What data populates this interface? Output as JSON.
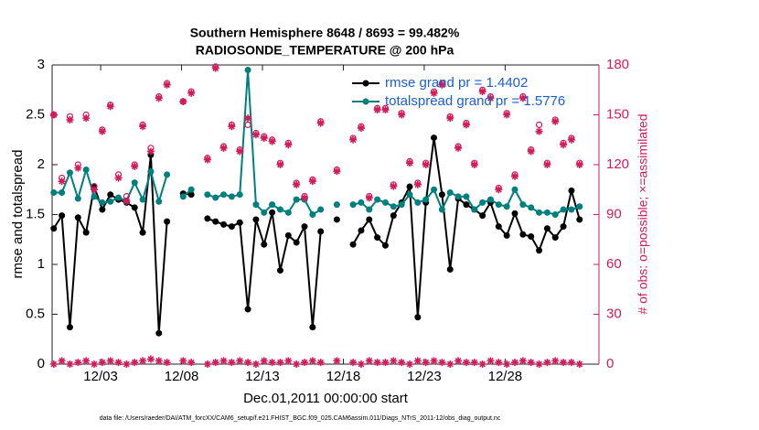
{
  "chart_data": {
    "type": "line",
    "title": "Southern Hemisphere 8648 / 8693 = 99.482%",
    "subtitle": "RADIOSONDE_TEMPERATURE @ 200 hPa",
    "xlabel": "Dec.01,2011 00:00:00 start",
    "ylabel": "rmse and totalspread",
    "y2label": "# of obs: o=possible; ×=assimilated",
    "footnote": "data file: /Users/raeder/DAI/ATM_forcXX/CAM6_setup/f.e21.FHIST_BGC.f09_025.CAM6assim.011/Diags_NTrS_2011-12/obs_diag_output.nc",
    "legend": "northeast",
    "xlim": [
      0,
      33.8
    ],
    "xticks": [
      {
        "value": 3,
        "label": "12/03"
      },
      {
        "value": 8,
        "label": "12/08"
      },
      {
        "value": 13,
        "label": "12/13"
      },
      {
        "value": 18,
        "label": "12/18"
      },
      {
        "value": 23,
        "label": "12/23"
      },
      {
        "value": 28,
        "label": "12/28"
      }
    ],
    "ylim": [
      0,
      3
    ],
    "yticks": [
      0,
      0.5,
      1,
      1.5,
      2,
      2.5,
      3
    ],
    "y2lim": [
      0,
      180
    ],
    "y2ticks": [
      0,
      30,
      60,
      90,
      120,
      150,
      180
    ],
    "y2color": "#d41a5a",
    "x": [
      0.1,
      0.6,
      1.1,
      1.6,
      2.1,
      2.6,
      3.1,
      3.6,
      4.1,
      4.6,
      5.1,
      5.6,
      6.1,
      6.6,
      7.1,
      7.6,
      8.1,
      8.6,
      9.1,
      9.6,
      10.1,
      10.6,
      11.1,
      11.6,
      12.1,
      12.6,
      13.1,
      13.6,
      14.1,
      14.6,
      15.1,
      15.6,
      16.1,
      16.6,
      17.1,
      17.6,
      18.1,
      18.6,
      19.1,
      19.6,
      20.1,
      20.6,
      21.1,
      21.6,
      22.1,
      22.6,
      23.1,
      23.6,
      24.1,
      24.6,
      25.1,
      25.6,
      26.1,
      26.6,
      27.1,
      27.6,
      28.1,
      28.6,
      29.1,
      29.6,
      30.1,
      30.6,
      31.1,
      31.6,
      32.1,
      32.6
    ],
    "series": [
      {
        "name": "rmse grand pr = 1.4402",
        "color": "#000000",
        "marker": "dot",
        "values": [
          1.36,
          1.49,
          0.37,
          1.47,
          1.32,
          1.78,
          1.55,
          1.7,
          1.65,
          1.62,
          1.57,
          1.32,
          2.1,
          0.31,
          1.43,
          null,
          1.71,
          1.7,
          null,
          1.46,
          1.43,
          1.4,
          1.38,
          1.42,
          0.55,
          1.45,
          1.2,
          1.52,
          0.94,
          1.29,
          1.22,
          1.38,
          0.37,
          1.33,
          null,
          1.45,
          null,
          1.2,
          1.34,
          1.45,
          1.27,
          1.19,
          1.49,
          1.62,
          1.78,
          0.47,
          1.62,
          2.27,
          1.7,
          0.95,
          1.66,
          1.6,
          1.55,
          1.49,
          1.62,
          1.38,
          1.29,
          1.51,
          1.3,
          1.28,
          1.14,
          1.36,
          1.27,
          1.38,
          1.74,
          1.45
        ]
      },
      {
        "name": "totalspread grand pr = 1.5776",
        "color": "#007f7f",
        "marker": "dot",
        "values": [
          1.72,
          1.72,
          1.92,
          1.66,
          1.95,
          1.68,
          1.62,
          1.63,
          1.67,
          1.64,
          1.82,
          1.65,
          1.93,
          1.63,
          1.9,
          null,
          1.68,
          1.75,
          null,
          1.7,
          1.67,
          1.7,
          1.68,
          1.7,
          2.95,
          1.6,
          1.52,
          1.6,
          1.55,
          1.52,
          1.65,
          1.65,
          1.5,
          1.55,
          null,
          1.6,
          null,
          1.6,
          1.62,
          1.55,
          1.65,
          1.62,
          1.58,
          1.6,
          1.7,
          1.62,
          1.65,
          1.75,
          1.55,
          1.72,
          1.68,
          1.68,
          1.55,
          1.62,
          1.65,
          1.6,
          1.58,
          1.75,
          1.6,
          1.57,
          1.52,
          1.52,
          1.5,
          1.55,
          1.55,
          1.58
        ]
      },
      {
        "axis": "y2",
        "color": "#d41a5a",
        "marker": "o",
        "line": false,
        "values": [
          150,
          112,
          149,
          120,
          150,
          107,
          141,
          156,
          114,
          101,
          120,
          144,
          130,
          161,
          169,
          null,
          158,
          164,
          null,
          124,
          179,
          131,
          144,
          129,
          144,
          139,
          137,
          135,
          121,
          133,
          109,
          101,
          111,
          146,
          null,
          117,
          null,
          136,
          143,
          101,
          154,
          154,
          108,
          151,
          122,
          109,
          121,
          164,
          169,
          149,
          131,
          145,
          121,
          165,
          161,
          106,
          151,
          114,
          161,
          129,
          144,
          121,
          147,
          133,
          136,
          121
        ]
      },
      {
        "axis": "y2",
        "color": "#d41a5a",
        "marker": "*",
        "line": false,
        "values": [
          150,
          110,
          147,
          118,
          148,
          105,
          140,
          155,
          112,
          98,
          119,
          143,
          128,
          160,
          168,
          null,
          158,
          163,
          null,
          123,
          178,
          130,
          143,
          128,
          148,
          138,
          136,
          134,
          120,
          132,
          108,
          100,
          110,
          145,
          null,
          116,
          null,
          135,
          142,
          100,
          153,
          153,
          107,
          150,
          121,
          108,
          120,
          163,
          168,
          148,
          130,
          144,
          120,
          164,
          160,
          105,
          150,
          113,
          160,
          128,
          140,
          120,
          146,
          132,
          135,
          120
        ]
      },
      {
        "axis": "y2",
        "color": "#d41a5a",
        "marker": "*",
        "line": false,
        "values": [
          0,
          2,
          0,
          1,
          2,
          0,
          1,
          2,
          1,
          0,
          1,
          2,
          3,
          2,
          1,
          null,
          2,
          1,
          null,
          0,
          1,
          2,
          1,
          2,
          1,
          0,
          2,
          1,
          1,
          2,
          0,
          1,
          2,
          1,
          null,
          2,
          null,
          1,
          0,
          2,
          1,
          1,
          2,
          1,
          0,
          2,
          1,
          2,
          1,
          0,
          2,
          1,
          1,
          0,
          2,
          1,
          0,
          1,
          2,
          1,
          0,
          1,
          2,
          1,
          1,
          0
        ]
      }
    ]
  }
}
